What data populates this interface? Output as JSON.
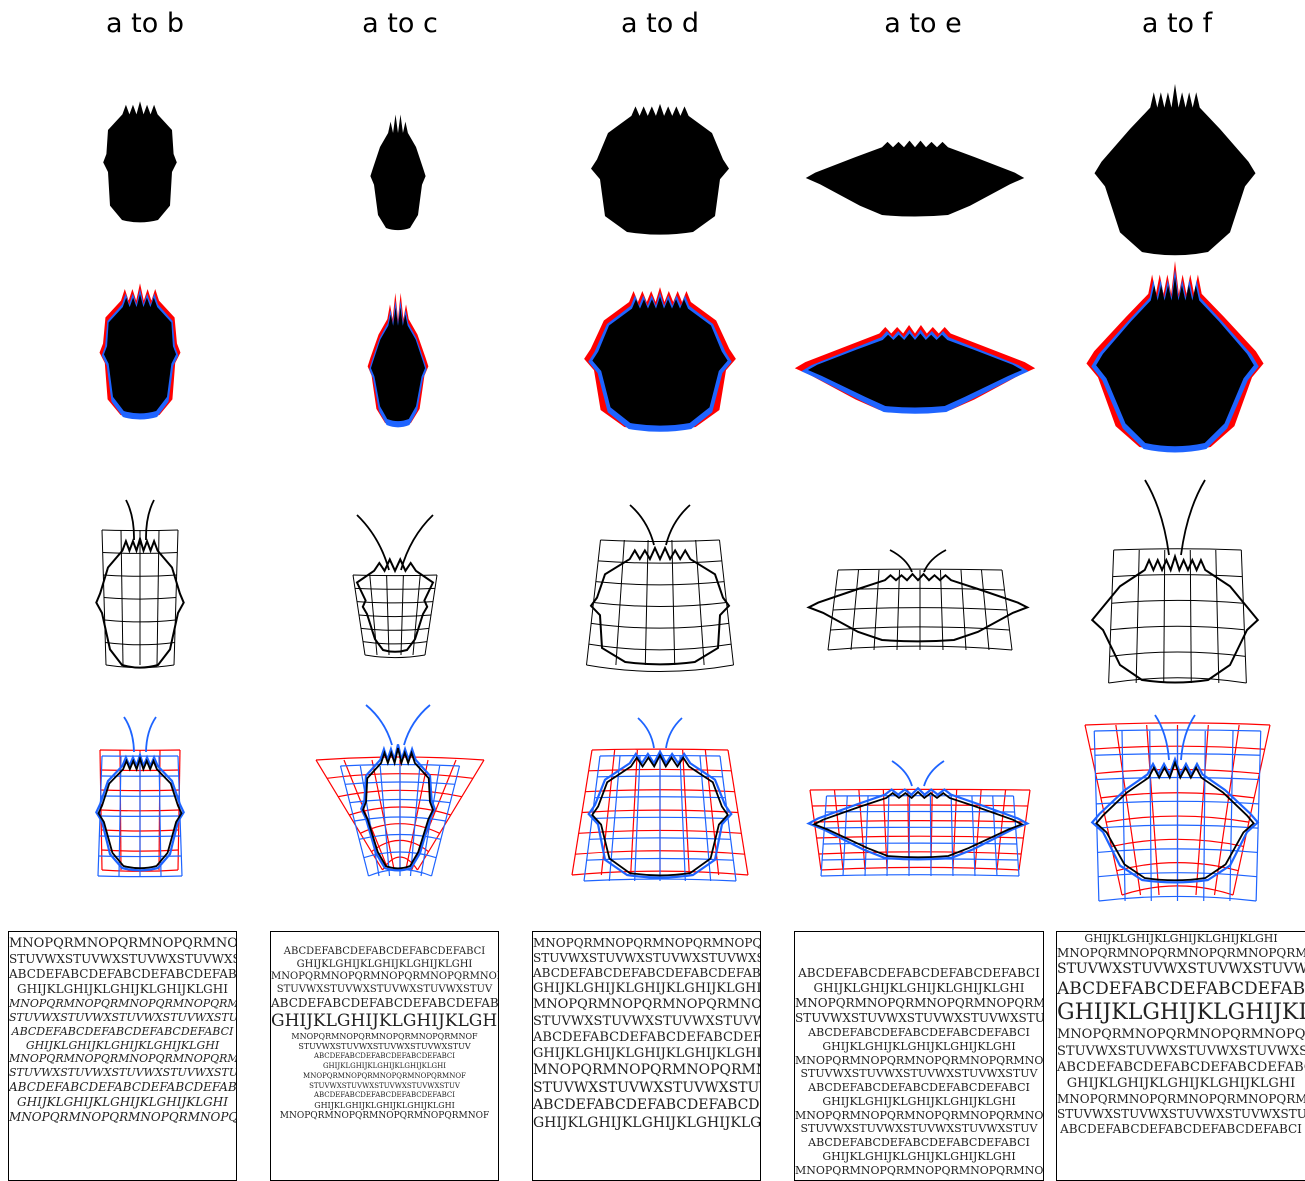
{
  "columns": [
    {
      "title": "a to b"
    },
    {
      "title": "a to c"
    },
    {
      "title": "a to d"
    },
    {
      "title": "a to e"
    },
    {
      "title": "a to f"
    }
  ],
  "colors": {
    "source": "#ff0000",
    "target": "#1e64ff",
    "shape": "#000000"
  },
  "text_patterns": [
    "MNOPQRMNOPQRMNOPQRMNOPQRMNOF",
    "STUVWXSTUVWXSTUVWXSTUVWXSTUV",
    "ABCDEFABCDEFABCDEFABCDEFABCI",
    "GHIJKLGHIJKLGHIJKLGHIJKLGHI"
  ]
}
